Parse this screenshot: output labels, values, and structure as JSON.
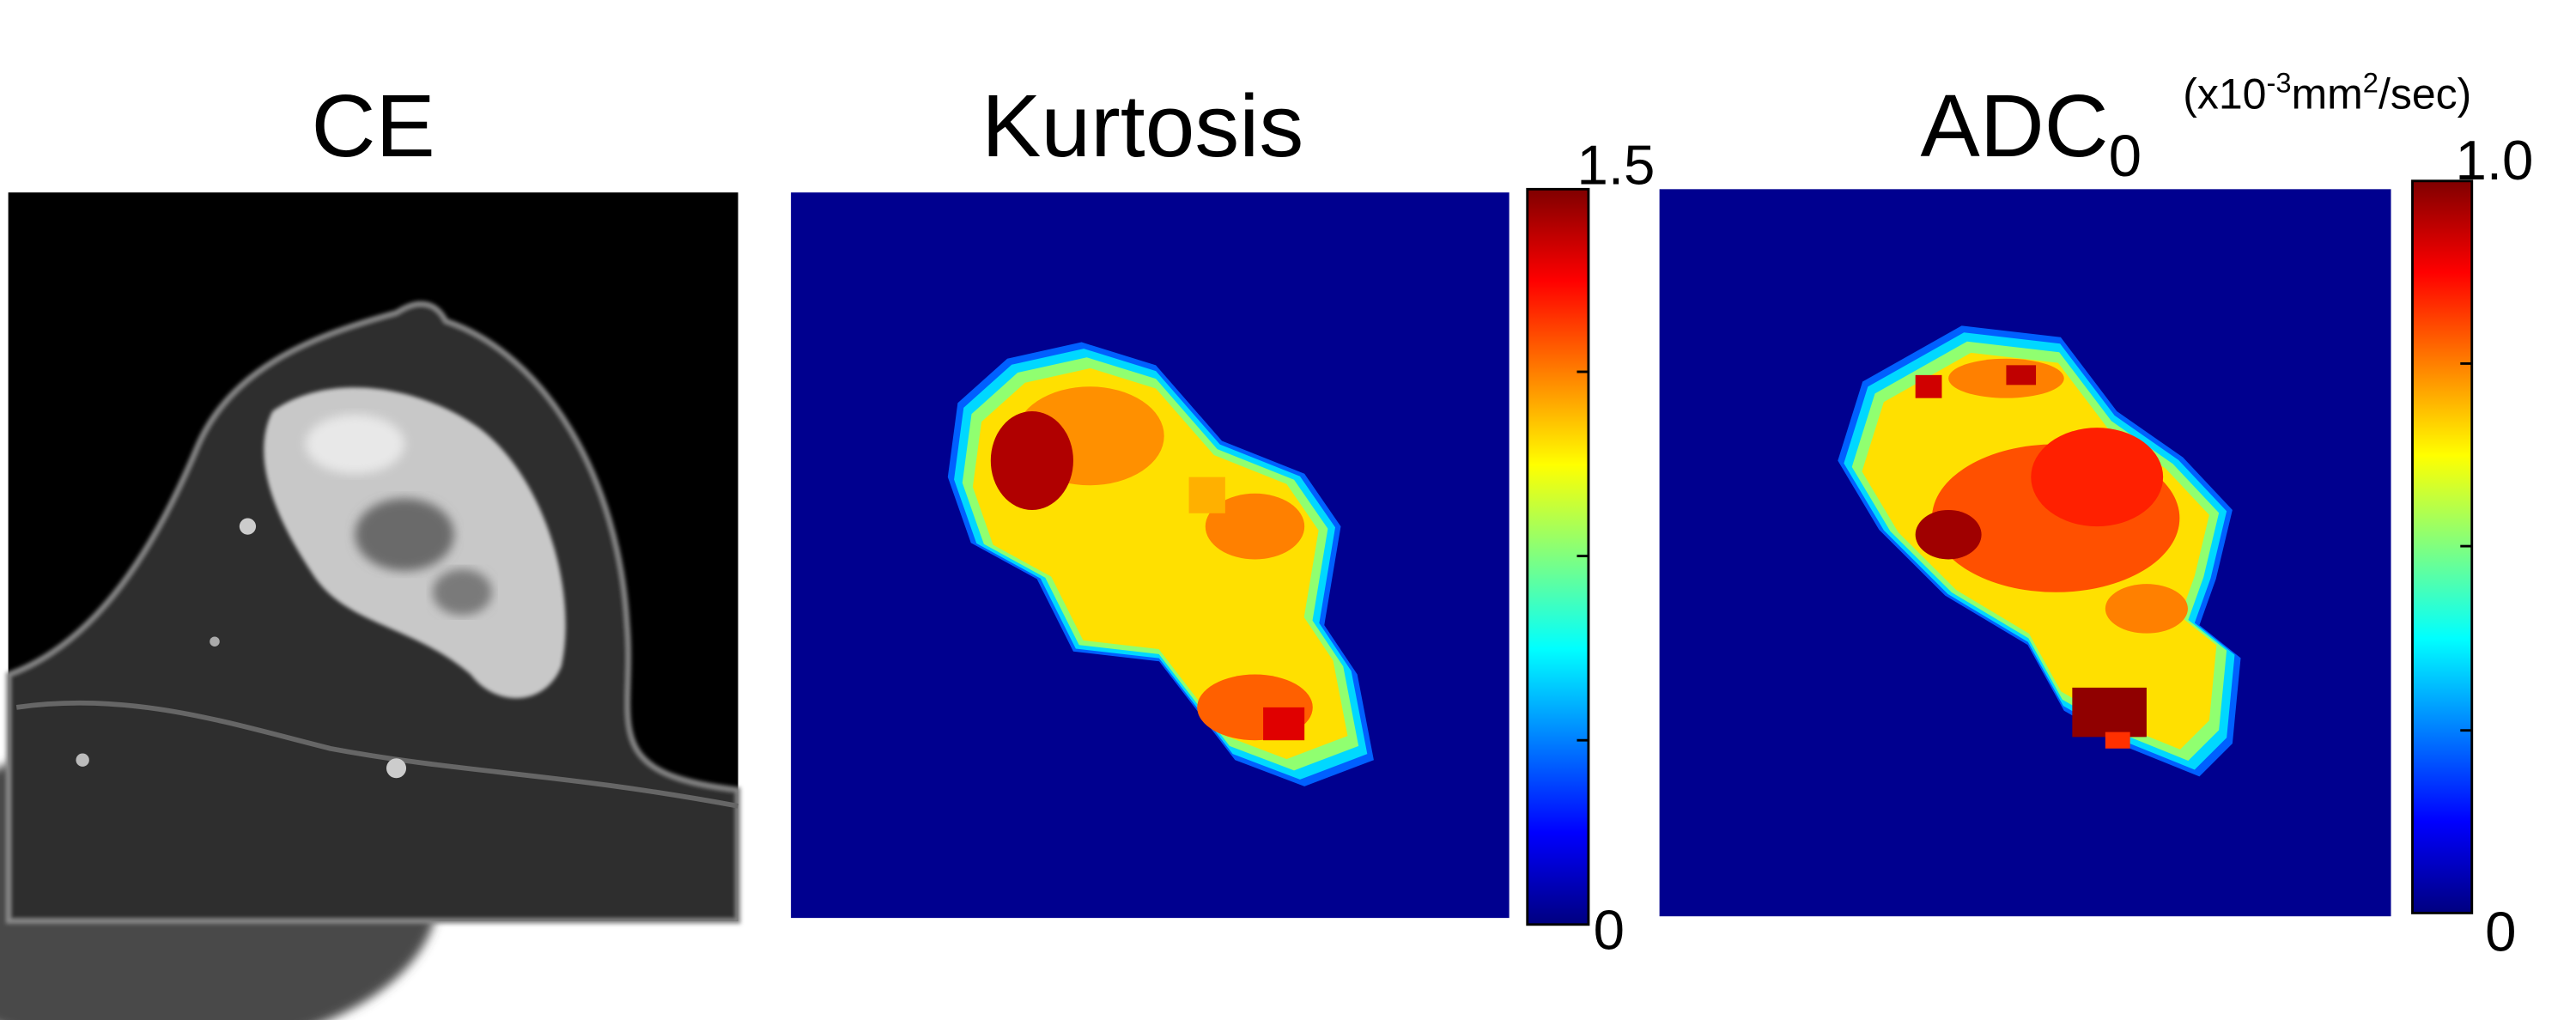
{
  "panels": [
    {
      "title": "CE"
    },
    {
      "title": "Kurtosis",
      "colorbar": {
        "max_label": "1.5",
        "min_label": "0"
      }
    },
    {
      "title": "ADC",
      "title_subscript": "0",
      "colorbar": {
        "max_label": "1.0",
        "min_label": "0"
      },
      "unit": {
        "prefix": "(x10",
        "exp1": "-3",
        "mid": "mm",
        "exp2": "2",
        "suffix": "/sec)"
      }
    }
  ]
}
